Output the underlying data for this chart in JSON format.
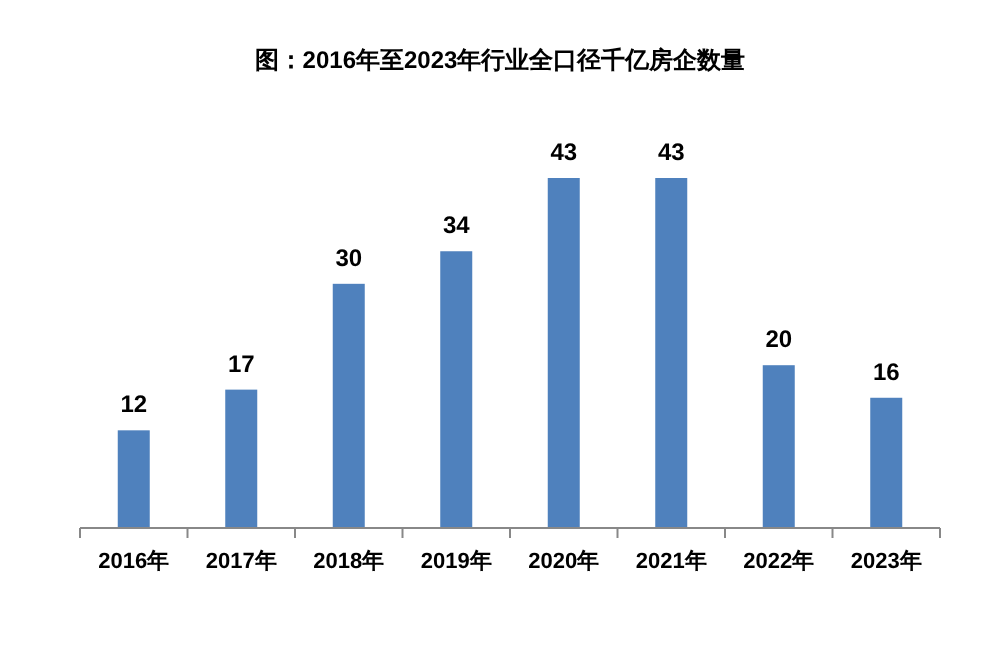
{
  "chart_data": {
    "type": "bar",
    "title": "图：2016年至2023年行业全口径千亿房企数量",
    "categories": [
      "2016年",
      "2017年",
      "2018年",
      "2019年",
      "2020年",
      "2021年",
      "2022年",
      "2023年"
    ],
    "values": [
      12,
      17,
      30,
      34,
      43,
      43,
      20,
      16
    ],
    "color": "#4f81bd",
    "data_labels": true,
    "grid": false,
    "legend": false
  }
}
